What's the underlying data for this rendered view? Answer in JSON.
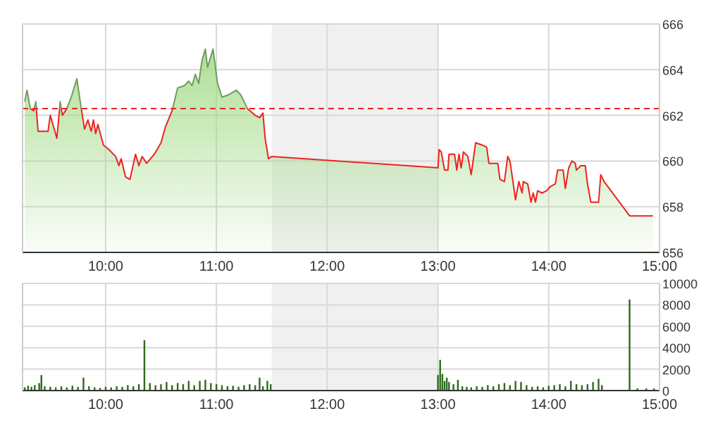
{
  "chart_data": [
    {
      "type": "area",
      "xlim": [
        9.25,
        15
      ],
      "ylim": [
        656,
        666
      ],
      "xticks": [
        {
          "value": 10,
          "label": "10:00"
        },
        {
          "value": 11,
          "label": "11:00"
        },
        {
          "value": 12,
          "label": "12:00"
        },
        {
          "value": 13,
          "label": "13:00"
        },
        {
          "value": 14,
          "label": "14:00"
        },
        {
          "value": 15,
          "label": "15:00"
        }
      ],
      "yticks": [
        656,
        658,
        660,
        662,
        664,
        666
      ],
      "grid": true,
      "bands": [
        {
          "axis": "x",
          "from": 11.5,
          "to": 13,
          "color": "#f0f0f0"
        }
      ],
      "ref_lines": [
        {
          "axis": "y",
          "value": 662.3,
          "color": "#ee2222",
          "line_style": "dashed"
        }
      ],
      "series": [
        {
          "color": "#a5dc8a",
          "x": [
            9.27,
            9.29,
            9.32,
            9.35,
            9.37,
            9.39,
            9.48,
            9.5,
            9.53,
            9.56,
            9.59,
            9.61,
            9.65,
            9.69,
            9.74,
            9.78,
            9.81,
            9.84,
            9.87,
            9.89,
            9.91,
            9.93,
            9.98,
            10.03,
            10.09,
            10.12,
            10.14,
            10.18,
            10.22,
            10.27,
            10.3,
            10.33,
            10.37,
            10.44,
            10.5,
            10.54,
            10.6,
            10.65,
            10.71,
            10.75,
            10.78,
            10.81,
            10.84,
            10.87,
            10.9,
            10.92,
            10.97,
            11.01,
            11.05,
            11.11,
            11.18,
            11.22,
            11.28,
            11.35,
            11.39,
            11.42,
            11.44,
            11.47,
            11.5,
            13.0,
            13.01,
            13.03,
            13.06,
            13.09,
            13.1,
            13.15,
            13.17,
            13.19,
            13.21,
            13.23,
            13.27,
            13.3,
            13.34,
            13.4,
            13.44,
            13.46,
            13.5,
            13.54,
            13.56,
            13.6,
            13.63,
            13.65,
            13.68,
            13.7,
            13.73,
            13.76,
            13.77,
            13.81,
            13.84,
            13.86,
            13.88,
            13.9,
            13.94,
            13.98,
            14.02,
            14.06,
            14.08,
            14.13,
            14.15,
            14.18,
            14.21,
            14.24,
            14.25,
            14.29,
            14.33,
            14.35,
            14.38,
            14.42,
            14.45,
            14.47,
            14.5,
            14.73,
            14.94
          ],
          "values": [
            662.6,
            663.1,
            662.3,
            662.2,
            662.6,
            661.3,
            661.3,
            662.0,
            661.5,
            661.0,
            662.6,
            662.0,
            662.3,
            662.8,
            663.6,
            662.3,
            661.4,
            661.8,
            661.3,
            661.8,
            661.2,
            661.6,
            660.7,
            660.5,
            660.2,
            659.8,
            660.1,
            659.3,
            659.2,
            660.3,
            659.8,
            660.2,
            659.9,
            660.3,
            660.8,
            661.5,
            662.2,
            663.2,
            663.3,
            663.5,
            663.3,
            663.8,
            663.4,
            664.4,
            664.9,
            664.1,
            664.9,
            663.4,
            662.8,
            662.9,
            663.1,
            662.9,
            662.3,
            662.0,
            661.9,
            662.1,
            661.0,
            660.1,
            660.2,
            659.7,
            660.5,
            660.4,
            659.6,
            659.6,
            660.3,
            660.3,
            659.6,
            660.3,
            659.7,
            660.4,
            660.2,
            659.4,
            660.8,
            660.7,
            660.6,
            659.9,
            659.9,
            659.9,
            659.2,
            659.1,
            660.2,
            660.0,
            659.0,
            658.3,
            659.1,
            658.6,
            659.1,
            659.0,
            658.2,
            658.6,
            658.2,
            658.7,
            658.6,
            658.7,
            658.9,
            659.0,
            659.6,
            659.6,
            658.8,
            659.7,
            660.0,
            659.9,
            659.6,
            659.8,
            659.8,
            659.0,
            658.2,
            658.2,
            658.2,
            659.4,
            659.1,
            657.6,
            657.6
          ]
        }
      ]
    },
    {
      "type": "bar",
      "xlim": [
        9.25,
        15
      ],
      "ylim": [
        0,
        10000
      ],
      "xticks": [
        {
          "value": 10,
          "label": "10:00"
        },
        {
          "value": 11,
          "label": "11:00"
        },
        {
          "value": 12,
          "label": "12:00"
        },
        {
          "value": 13,
          "label": "13:00"
        },
        {
          "value": 14,
          "label": "14:00"
        },
        {
          "value": 15,
          "label": "15:00"
        }
      ],
      "yticks": [
        0,
        2000,
        4000,
        6000,
        8000,
        10000
      ],
      "grid": true,
      "bands": [
        {
          "axis": "x",
          "from": 11.5,
          "to": 13,
          "color": "#f0f0f0"
        }
      ],
      "series": [
        {
          "color": "#2e6b1e",
          "x": [
            9.27,
            9.3,
            9.33,
            9.36,
            9.4,
            9.42,
            9.45,
            9.5,
            9.55,
            9.6,
            9.65,
            9.7,
            9.75,
            9.8,
            9.85,
            9.9,
            9.95,
            10.0,
            10.05,
            10.1,
            10.15,
            10.2,
            10.25,
            10.3,
            10.35,
            10.4,
            10.45,
            10.5,
            10.55,
            10.6,
            10.65,
            10.7,
            10.75,
            10.8,
            10.85,
            10.9,
            10.95,
            11.0,
            11.05,
            11.1,
            11.15,
            11.2,
            11.25,
            11.3,
            11.35,
            11.39,
            11.42,
            11.46,
            11.49,
            13.0,
            13.02,
            13.04,
            13.06,
            13.08,
            13.1,
            13.14,
            13.18,
            13.22,
            13.26,
            13.3,
            13.35,
            13.4,
            13.45,
            13.5,
            13.55,
            13.6,
            13.65,
            13.7,
            13.75,
            13.8,
            13.85,
            13.9,
            13.95,
            14.0,
            14.05,
            14.1,
            14.15,
            14.2,
            14.25,
            14.3,
            14.35,
            14.4,
            14.45,
            14.48,
            14.73,
            14.8,
            14.88,
            14.95
          ],
          "values": [
            300,
            450,
            350,
            500,
            700,
            1450,
            400,
            350,
            300,
            400,
            300,
            450,
            350,
            1200,
            400,
            300,
            250,
            350,
            300,
            400,
            350,
            500,
            400,
            600,
            4700,
            700,
            500,
            600,
            800,
            500,
            700,
            600,
            900,
            500,
            900,
            1000,
            700,
            600,
            500,
            400,
            450,
            350,
            500,
            600,
            500,
            1200,
            400,
            900,
            600,
            1450,
            2860,
            1550,
            900,
            1200,
            800,
            600,
            1000,
            400,
            350,
            300,
            400,
            350,
            500,
            400,
            600,
            700,
            500,
            900,
            800,
            500,
            350,
            400,
            300,
            450,
            500,
            600,
            400,
            900,
            600,
            500,
            600,
            800,
            1100,
            500,
            8500,
            200,
            200,
            200
          ]
        }
      ]
    }
  ]
}
